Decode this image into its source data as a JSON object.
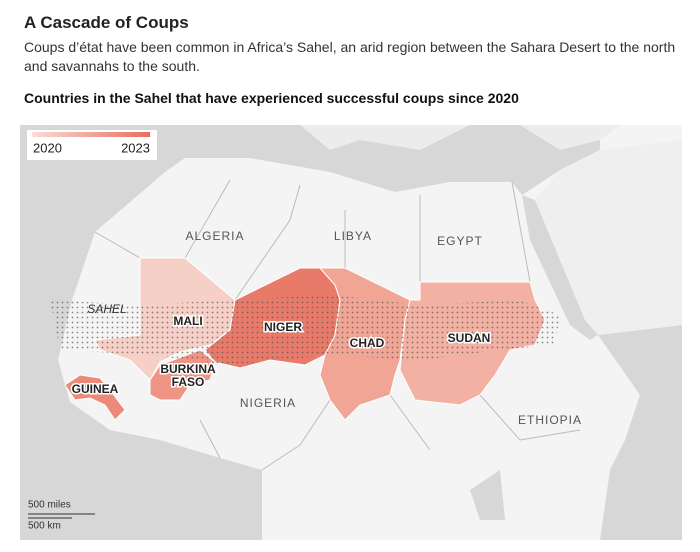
{
  "header": {
    "title": "A Cascade of Coups",
    "subtitle": "Coups d’état have been common in Africa’s Sahel, an arid region between the Sahara Desert to the north and savannahs to the south.",
    "map_title": "Countries in the Sahel that have experienced successful coups since 2020"
  },
  "legend": {
    "start": "2020",
    "end": "2023"
  },
  "map": {
    "region": "SAHEL",
    "other_countries": [
      "ALGERIA",
      "LIBYA",
      "EGYPT",
      "NIGERIA",
      "ETHIOPIA"
    ],
    "coup_countries": [
      {
        "lines": [
          "MALI"
        ]
      },
      {
        "lines": [
          "NIGER"
        ]
      },
      {
        "lines": [
          "CHAD"
        ]
      },
      {
        "lines": [
          "SUDAN"
        ]
      },
      {
        "lines": [
          "BURKINA",
          "FASO"
        ]
      },
      {
        "lines": [
          "GUINEA"
        ]
      }
    ],
    "scale": [
      "500 miles",
      "500 km"
    ]
  }
}
